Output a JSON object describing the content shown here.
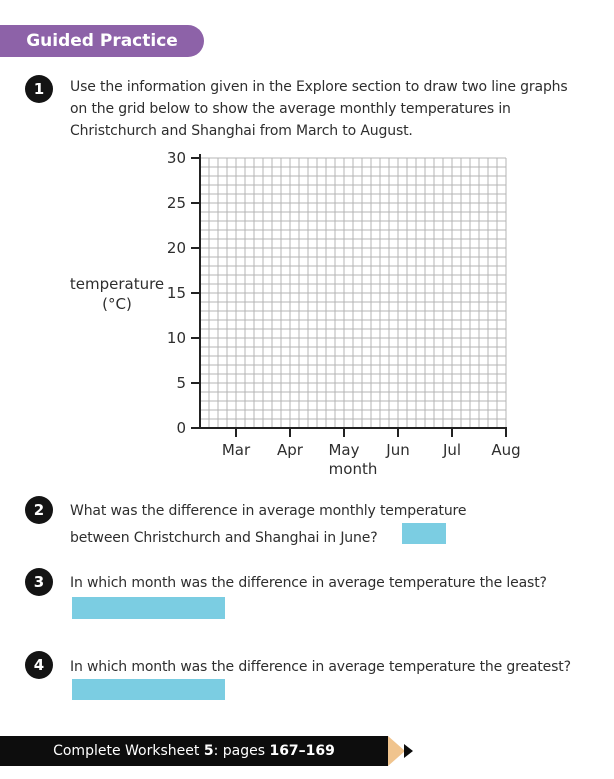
{
  "header": {
    "label": "Guided Practice",
    "bg_color": "#8d62a8",
    "text_color": "#ffffff"
  },
  "questions": [
    {
      "number": "1",
      "lines": [
        "Use the information given in the Explore section to draw two line graphs",
        "on the grid below to show the average monthly temperatures in",
        "Christchurch and Shanghai from March to August."
      ]
    },
    {
      "number": "2",
      "lines": [
        "What was the difference in average monthly temperature",
        "between Christchurch and Shanghai in June?"
      ],
      "has_answer_box": true
    },
    {
      "number": "3",
      "lines": [
        "In which month was the difference in average temperature the least?"
      ],
      "has_answer_box": true
    },
    {
      "number": "4",
      "lines": [
        "In which month was the difference in average temperature the greatest?"
      ],
      "has_answer_box": true
    }
  ],
  "chart_data": {
    "type": "line",
    "title": "",
    "xlabel": "month",
    "ylabel": "temperature (°C)",
    "ylabel_lines": [
      "temperature",
      "(°C)"
    ],
    "x_categories": [
      "Mar",
      "Apr",
      "May",
      "Jun",
      "Jul",
      "Aug"
    ],
    "y_ticks": [
      0,
      5,
      10,
      15,
      20,
      25,
      30
    ],
    "ylim": [
      0,
      30
    ],
    "grid": true,
    "grid_columns": 34,
    "grid_rows": 30,
    "lead_columns": 4,
    "columns_per_month": 6,
    "series": []
  },
  "footer": {
    "parts": [
      "Complete Worksheet ",
      "5",
      ": pages ",
      "167–169"
    ],
    "bar_color": "#0d0d0d",
    "pencil_wood_color": "#f0c48e"
  },
  "colors": {
    "accent_purple": "#8d62a8",
    "answer_box_blue": "#7bcde2",
    "grid_line": "#b4b4b4",
    "axis": "#222222"
  }
}
